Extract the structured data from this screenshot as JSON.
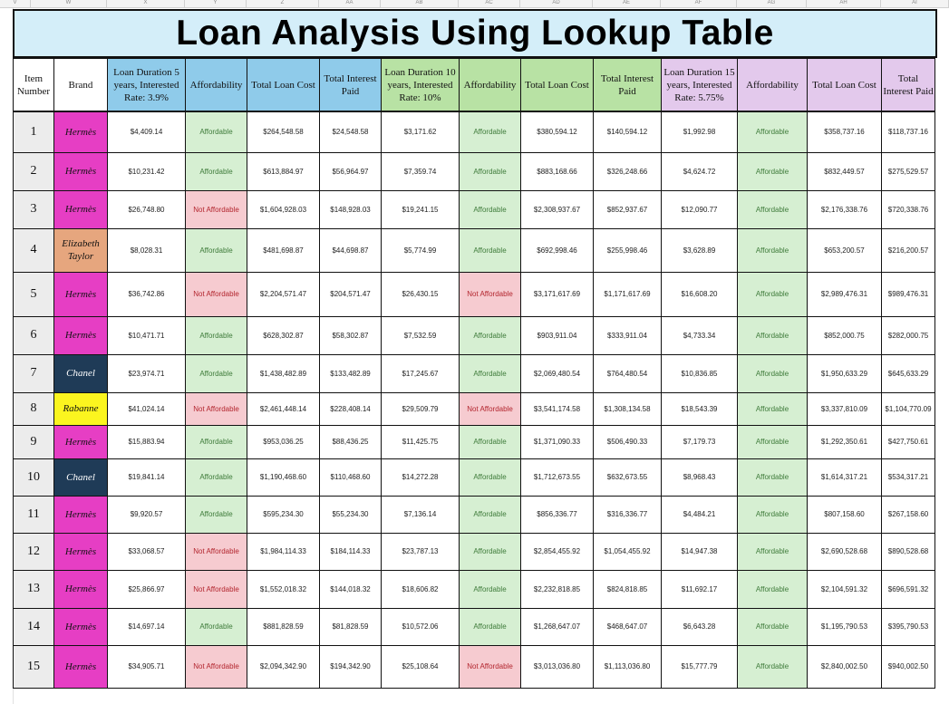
{
  "sheet_columns": [
    "V",
    "W",
    "X",
    "Y",
    "Z",
    "AA",
    "AB",
    "AC",
    "AD",
    "AE",
    "AF",
    "AG",
    "AH",
    "AI"
  ],
  "title": "Loan Analysis Using Lookup Table",
  "headers": {
    "item": "Item Number",
    "brand": "Brand",
    "groups": [
      {
        "duration": "Loan Duration 5 years, Interested Rate: 3.9%",
        "affordability": "Affordability",
        "total_cost": "Total Loan Cost",
        "total_interest": "Total Interest Paid"
      },
      {
        "duration": "Loan Duration 10 years, Interested Rate: 10%",
        "affordability": "Affordability",
        "total_cost": "Total Loan Cost",
        "total_interest": "Total Interest Paid"
      },
      {
        "duration": "Loan Duration 15 years, Interested Rate: 5.75%",
        "affordability": "Affordability",
        "total_cost": "Total Loan Cost",
        "total_interest": "Total Interest Paid"
      }
    ]
  },
  "colors": {
    "title_bg": "#d4eef9",
    "group_blue": "#8fcbea",
    "group_green": "#b8e2a4",
    "group_purple": "#e3c9ec",
    "brand_hermes": "#e63ec4",
    "brand_chanel": "#1f3b57",
    "brand_rabanne": "#fbf51f",
    "brand_elizabeth_taylor": "#e6a67e",
    "affordable_bg": "#d6efd2",
    "affordable_text": "#3e7b3a",
    "not_affordable_bg": "#f6cbd0",
    "not_affordable_text": "#b3262f"
  },
  "rows": [
    {
      "item": "1",
      "brand": "Hermès",
      "brand_key": "hermes",
      "c": [
        [
          "$4,409.14",
          "Affordable",
          "$264,548.58",
          "$24,548.58"
        ],
        [
          "$3,171.62",
          "Affordable",
          "$380,594.12",
          "$140,594.12"
        ],
        [
          "$1,992.98",
          "Affordable",
          "$358,737.16",
          "$118,737.16"
        ]
      ]
    },
    {
      "item": "2",
      "brand": "Hermès",
      "brand_key": "hermes",
      "c": [
        [
          "$10,231.42",
          "Affordable",
          "$613,884.97",
          "$56,964.97"
        ],
        [
          "$7,359.74",
          "Affordable",
          "$883,168.66",
          "$326,248.66"
        ],
        [
          "$4,624.72",
          "Affordable",
          "$832,449.57",
          "$275,529.57"
        ]
      ]
    },
    {
      "item": "3",
      "brand": "Hermès",
      "brand_key": "hermes",
      "c": [
        [
          "$26,748.80",
          "Not Affordable",
          "$1,604,928.03",
          "$148,928.03"
        ],
        [
          "$19,241.15",
          "Affordable",
          "$2,308,937.67",
          "$852,937.67"
        ],
        [
          "$12,090.77",
          "Affordable",
          "$2,176,338.76",
          "$720,338.76"
        ]
      ]
    },
    {
      "item": "4",
      "brand": "Elizabeth Taylor",
      "brand_key": "elizabeth",
      "c": [
        [
          "$8,028.31",
          "Affordable",
          "$481,698.87",
          "$44,698.87"
        ],
        [
          "$5,774.99",
          "Affordable",
          "$692,998.46",
          "$255,998.46"
        ],
        [
          "$3,628.89",
          "Affordable",
          "$653,200.57",
          "$216,200.57"
        ]
      ]
    },
    {
      "item": "5",
      "brand": "Hermès",
      "brand_key": "hermes",
      "c": [
        [
          "$36,742.86",
          "Not Affordable",
          "$2,204,571.47",
          "$204,571.47"
        ],
        [
          "$26,430.15",
          "Not Affordable",
          "$3,171,617.69",
          "$1,171,617.69"
        ],
        [
          "$16,608.20",
          "Affordable",
          "$2,989,476.31",
          "$989,476.31"
        ]
      ]
    },
    {
      "item": "6",
      "brand": "Hermès",
      "brand_key": "hermes",
      "c": [
        [
          "$10,471.71",
          "Affordable",
          "$628,302.87",
          "$58,302.87"
        ],
        [
          "$7,532.59",
          "Affordable",
          "$903,911.04",
          "$333,911.04"
        ],
        [
          "$4,733.34",
          "Affordable",
          "$852,000.75",
          "$282,000.75"
        ]
      ]
    },
    {
      "item": "7",
      "brand": "Chanel",
      "brand_key": "chanel",
      "c": [
        [
          "$23,974.71",
          "Affordable",
          "$1,438,482.89",
          "$133,482.89"
        ],
        [
          "$17,245.67",
          "Affordable",
          "$2,069,480.54",
          "$764,480.54"
        ],
        [
          "$10,836.85",
          "Affordable",
          "$1,950,633.29",
          "$645,633.29"
        ]
      ]
    },
    {
      "item": "8",
      "brand": "Rabanne",
      "brand_key": "rabanne",
      "c": [
        [
          "$41,024.14",
          "Not Affordable",
          "$2,461,448.14",
          "$228,408.14"
        ],
        [
          "$29,509.79",
          "Not Affordable",
          "$3,541,174.58",
          "$1,308,134.58"
        ],
        [
          "$18,543.39",
          "Affordable",
          "$3,337,810.09",
          "$1,104,770.09"
        ]
      ]
    },
    {
      "item": "9",
      "brand": "Hermès",
      "brand_key": "hermes",
      "c": [
        [
          "$15,883.94",
          "Affordable",
          "$953,036.25",
          "$88,436.25"
        ],
        [
          "$11,425.75",
          "Affordable",
          "$1,371,090.33",
          "$506,490.33"
        ],
        [
          "$7,179.73",
          "Affordable",
          "$1,292,350.61",
          "$427,750.61"
        ]
      ]
    },
    {
      "item": "10",
      "brand": "Chanel",
      "brand_key": "chanel",
      "c": [
        [
          "$19,841.14",
          "Affordable",
          "$1,190,468.60",
          "$110,468.60"
        ],
        [
          "$14,272.28",
          "Affordable",
          "$1,712,673.55",
          "$632,673.55"
        ],
        [
          "$8,968.43",
          "Affordable",
          "$1,614,317.21",
          "$534,317.21"
        ]
      ]
    },
    {
      "item": "11",
      "brand": "Hermès",
      "brand_key": "hermes",
      "c": [
        [
          "$9,920.57",
          "Affordable",
          "$595,234.30",
          "$55,234.30"
        ],
        [
          "$7,136.14",
          "Affordable",
          "$856,336.77",
          "$316,336.77"
        ],
        [
          "$4,484.21",
          "Affordable",
          "$807,158.60",
          "$267,158.60"
        ]
      ]
    },
    {
      "item": "12",
      "brand": "Hermès",
      "brand_key": "hermes",
      "c": [
        [
          "$33,068.57",
          "Not Affordable",
          "$1,984,114.33",
          "$184,114.33"
        ],
        [
          "$23,787.13",
          "Affordable",
          "$2,854,455.92",
          "$1,054,455.92"
        ],
        [
          "$14,947.38",
          "Affordable",
          "$2,690,528.68",
          "$890,528.68"
        ]
      ]
    },
    {
      "item": "13",
      "brand": "Hermès",
      "brand_key": "hermes",
      "c": [
        [
          "$25,866.97",
          "Not Affordable",
          "$1,552,018.32",
          "$144,018.32"
        ],
        [
          "$18,606.82",
          "Affordable",
          "$2,232,818.85",
          "$824,818.85"
        ],
        [
          "$11,692.17",
          "Affordable",
          "$2,104,591.32",
          "$696,591.32"
        ]
      ]
    },
    {
      "item": "14",
      "brand": "Hermès",
      "brand_key": "hermes",
      "c": [
        [
          "$14,697.14",
          "Affordable",
          "$881,828.59",
          "$81,828.59"
        ],
        [
          "$10,572.06",
          "Affordable",
          "$1,268,647.07",
          "$468,647.07"
        ],
        [
          "$6,643.28",
          "Affordable",
          "$1,195,790.53",
          "$395,790.53"
        ]
      ]
    },
    {
      "item": "15",
      "brand": "Hermès",
      "brand_key": "hermes",
      "c": [
        [
          "$34,905.71",
          "Not Affordable",
          "$2,094,342.90",
          "$194,342.90"
        ],
        [
          "$25,108.64",
          "Not Affordable",
          "$3,013,036.80",
          "$1,113,036.80"
        ],
        [
          "$15,777.79",
          "Affordable",
          "$2,840,002.50",
          "$940,002.50"
        ]
      ]
    }
  ]
}
